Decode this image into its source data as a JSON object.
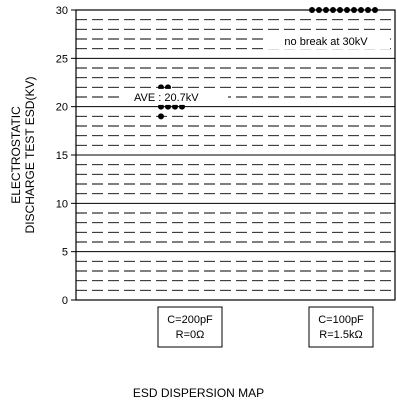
{
  "chart_data": {
    "type": "scatter",
    "ylabel": [
      "ELECTROSTATIC",
      "DISCHARGE TEST ESD(KV)"
    ],
    "ylim": [
      0,
      30
    ],
    "yticks": [
      0,
      5,
      10,
      15,
      20,
      25,
      30
    ],
    "grid": "dashed horizontal every 1 kV, solid every 5 kV",
    "categories": [
      {
        "lines": [
          "C=200pF",
          "R=0Ω"
        ]
      },
      {
        "lines": [
          "C=100pF",
          "R=1.5kΩ"
        ]
      }
    ],
    "series": [
      {
        "category": 0,
        "points": [
          [
            22,
            2
          ],
          [
            21.5,
            2
          ],
          [
            21,
            5
          ],
          [
            20.5,
            1
          ],
          [
            20,
            4
          ],
          [
            19,
            1
          ]
        ]
      },
      {
        "category": 1,
        "points": [
          [
            30,
            10
          ]
        ]
      }
    ],
    "annotations": [
      {
        "text": "AVE : 20.7kV",
        "y": 20.7
      },
      {
        "text": "no break at 30kV",
        "y": 30
      }
    ],
    "title": "ESD DISPERSION MAP"
  }
}
